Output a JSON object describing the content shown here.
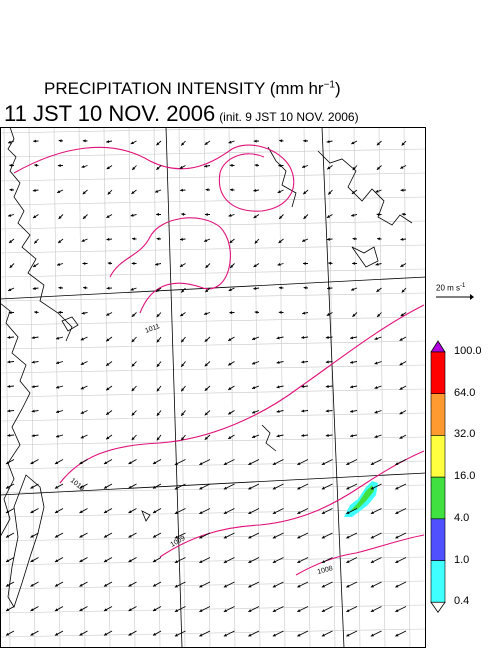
{
  "title": {
    "line1_text": "PRECIPITATION INTENSITY (mm hr",
    "line1_unit_exp": "−1",
    "line1_close": ")",
    "valid_time": "11 JST 10 NOV. 2006",
    "init_time": "(init. 9 JST 10 NOV. 2006)"
  },
  "reference_vector": {
    "label": "20 m s",
    "exponent": "-1",
    "speed_ms": 20
  },
  "isobar_labels": [
    {
      "text": "1011"
    },
    {
      "text": "1010"
    },
    {
      "text": "1009"
    },
    {
      "text": "1008"
    }
  ],
  "colorbar": {
    "labels": [
      "100.0",
      "64.0",
      "32.0",
      "16.0",
      "4.0",
      "1.0",
      "0.4"
    ],
    "colors": [
      "#b000e0",
      "#ff0000",
      "#ff9a30",
      "#ffff40",
      "#40e040",
      "#5050ff",
      "#40ffff",
      "#ffffff"
    ]
  },
  "colors": {
    "isobar": "#e0107a",
    "coast": "#000000",
    "grid_minor": "#c8c8c8",
    "grid_major": "#000000"
  }
}
